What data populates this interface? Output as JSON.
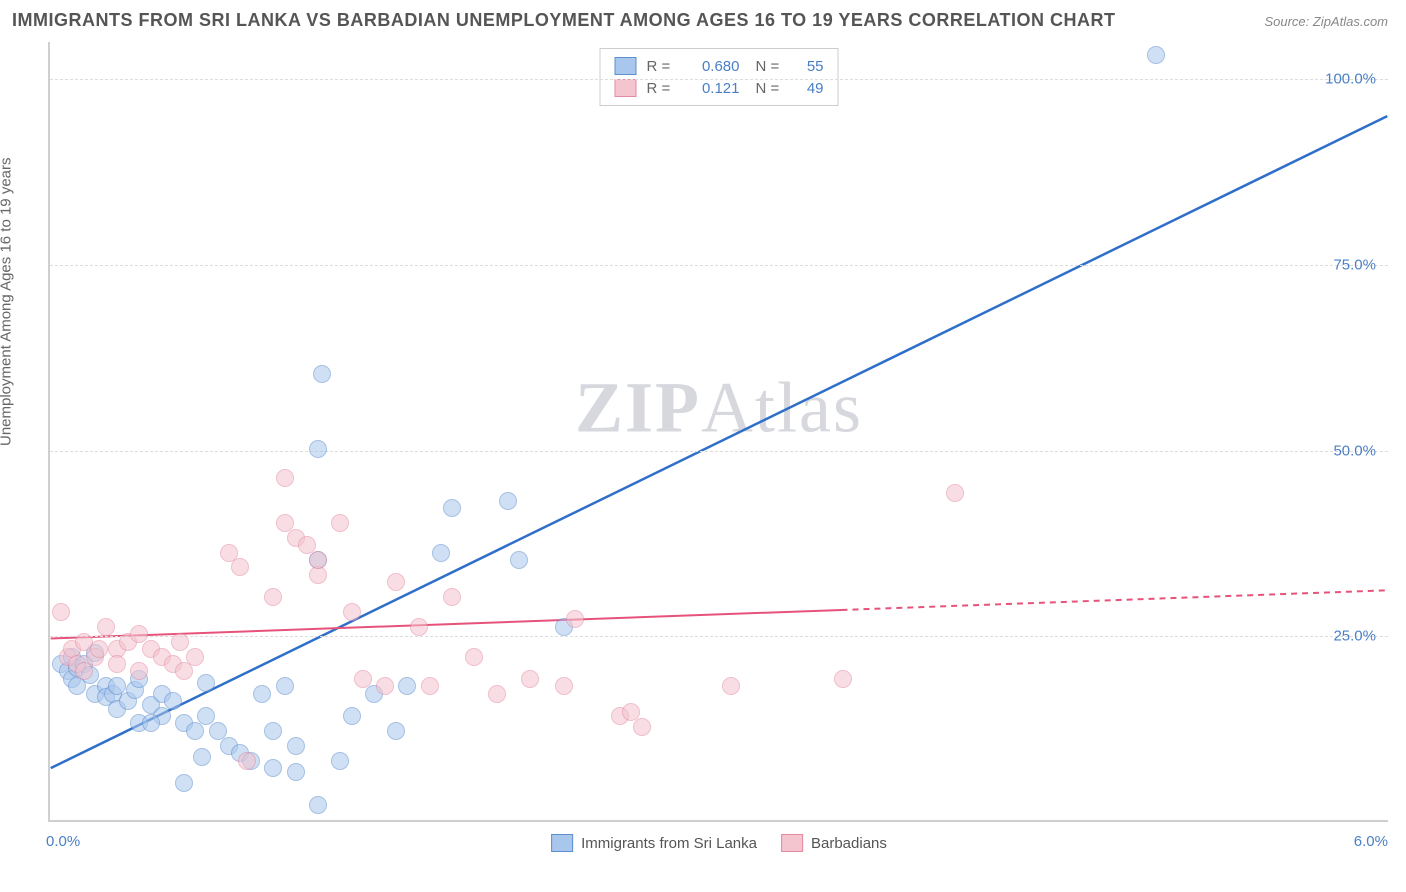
{
  "title": "IMMIGRANTS FROM SRI LANKA VS BARBADIAN UNEMPLOYMENT AMONG AGES 16 TO 19 YEARS CORRELATION CHART",
  "source": "Source: ZipAtlas.com",
  "ylabel": "Unemployment Among Ages 16 to 19 years",
  "watermark_a": "ZIP",
  "watermark_b": "Atlas",
  "chart": {
    "type": "scatter",
    "background_color": "#ffffff",
    "grid_color": "#dddddd",
    "axis_color": "#cfcfcf",
    "tick_label_color": "#4a7fc4",
    "xlim": [
      0.0,
      6.0
    ],
    "ylim": [
      0.0,
      105.0
    ],
    "yticks": [
      25.0,
      50.0,
      75.0,
      100.0
    ],
    "ytick_labels": [
      "25.0%",
      "50.0%",
      "75.0%",
      "100.0%"
    ],
    "xtick_left": "0.0%",
    "xtick_right": "6.0%",
    "marker_size": 18,
    "marker_opacity": 0.55,
    "series": [
      {
        "name": "Immigrants from Sri Lanka",
        "color_fill": "#a9c7ec",
        "color_stroke": "#5d8ecf",
        "R": "0.680",
        "N": "55",
        "trend": {
          "x1": 0.0,
          "y1": 7.0,
          "x2": 6.0,
          "y2": 95.0,
          "solid_end_x": 6.0,
          "color": "#2f6fc9",
          "width": 2.5
        },
        "points": [
          [
            0.05,
            21
          ],
          [
            0.08,
            20
          ],
          [
            0.1,
            22
          ],
          [
            0.1,
            19
          ],
          [
            0.12,
            20.5
          ],
          [
            0.15,
            21
          ],
          [
            0.12,
            18
          ],
          [
            0.18,
            19.5
          ],
          [
            0.2,
            22.5
          ],
          [
            0.2,
            17
          ],
          [
            0.25,
            18
          ],
          [
            0.25,
            16.5
          ],
          [
            0.28,
            17
          ],
          [
            0.3,
            15
          ],
          [
            0.3,
            18
          ],
          [
            0.35,
            16
          ],
          [
            0.38,
            17.5
          ],
          [
            0.4,
            19
          ],
          [
            0.4,
            13
          ],
          [
            0.45,
            15.5
          ],
          [
            0.5,
            14
          ],
          [
            0.5,
            17
          ],
          [
            0.55,
            16
          ],
          [
            0.6,
            13
          ],
          [
            0.6,
            5
          ],
          [
            0.65,
            12
          ],
          [
            0.68,
            8.5
          ],
          [
            0.7,
            14
          ],
          [
            0.75,
            12
          ],
          [
            0.8,
            10
          ],
          [
            0.85,
            9
          ],
          [
            0.9,
            8
          ],
          [
            0.95,
            17
          ],
          [
            1.0,
            12
          ],
          [
            1.0,
            7
          ],
          [
            1.05,
            18
          ],
          [
            1.1,
            6.5
          ],
          [
            1.1,
            10
          ],
          [
            1.2,
            35
          ],
          [
            1.2,
            50
          ],
          [
            1.22,
            60
          ],
          [
            1.2,
            2
          ],
          [
            1.3,
            8
          ],
          [
            1.35,
            14
          ],
          [
            1.45,
            17
          ],
          [
            1.55,
            12
          ],
          [
            1.6,
            18
          ],
          [
            1.75,
            36
          ],
          [
            1.8,
            42
          ],
          [
            2.05,
            43
          ],
          [
            2.1,
            35
          ],
          [
            2.3,
            26
          ],
          [
            4.95,
            103
          ],
          [
            0.7,
            18.5
          ],
          [
            0.45,
            13
          ]
        ]
      },
      {
        "name": "Barbadians",
        "color_fill": "#f4c4cf",
        "color_stroke": "#e58aa0",
        "R": "0.121",
        "N": "49",
        "trend": {
          "x1": 0.0,
          "y1": 24.5,
          "x2": 6.0,
          "y2": 31.0,
          "solid_end_x": 3.55,
          "color": "#e6527a",
          "width": 2
        },
        "points": [
          [
            0.05,
            28
          ],
          [
            0.08,
            22
          ],
          [
            0.1,
            23
          ],
          [
            0.12,
            21
          ],
          [
            0.15,
            24
          ],
          [
            0.15,
            20
          ],
          [
            0.2,
            22
          ],
          [
            0.22,
            23
          ],
          [
            0.25,
            26
          ],
          [
            0.3,
            23
          ],
          [
            0.3,
            21
          ],
          [
            0.35,
            24
          ],
          [
            0.4,
            20
          ],
          [
            0.4,
            25
          ],
          [
            0.45,
            23
          ],
          [
            0.5,
            22
          ],
          [
            0.55,
            21
          ],
          [
            0.58,
            24
          ],
          [
            0.6,
            20
          ],
          [
            0.65,
            22
          ],
          [
            0.8,
            36
          ],
          [
            0.85,
            34
          ],
          [
            0.88,
            8
          ],
          [
            1.0,
            30
          ],
          [
            1.05,
            46
          ],
          [
            1.05,
            40
          ],
          [
            1.1,
            38
          ],
          [
            1.15,
            37
          ],
          [
            1.2,
            33
          ],
          [
            1.2,
            35
          ],
          [
            1.3,
            40
          ],
          [
            1.35,
            28
          ],
          [
            1.4,
            19
          ],
          [
            1.5,
            18
          ],
          [
            1.55,
            32
          ],
          [
            1.65,
            26
          ],
          [
            1.7,
            18
          ],
          [
            1.8,
            30
          ],
          [
            1.9,
            22
          ],
          [
            2.0,
            17
          ],
          [
            2.15,
            19
          ],
          [
            2.3,
            18
          ],
          [
            2.35,
            27
          ],
          [
            2.55,
            14
          ],
          [
            2.6,
            14.5
          ],
          [
            2.65,
            12.5
          ],
          [
            3.05,
            18
          ],
          [
            3.55,
            19
          ],
          [
            4.05,
            44
          ]
        ]
      }
    ],
    "legend_bottom": [
      {
        "label": "Immigrants from Sri Lanka",
        "fill": "#a9c7ec",
        "stroke": "#5d8ecf"
      },
      {
        "label": "Barbadians",
        "fill": "#f4c4cf",
        "stroke": "#e58aa0"
      }
    ]
  }
}
